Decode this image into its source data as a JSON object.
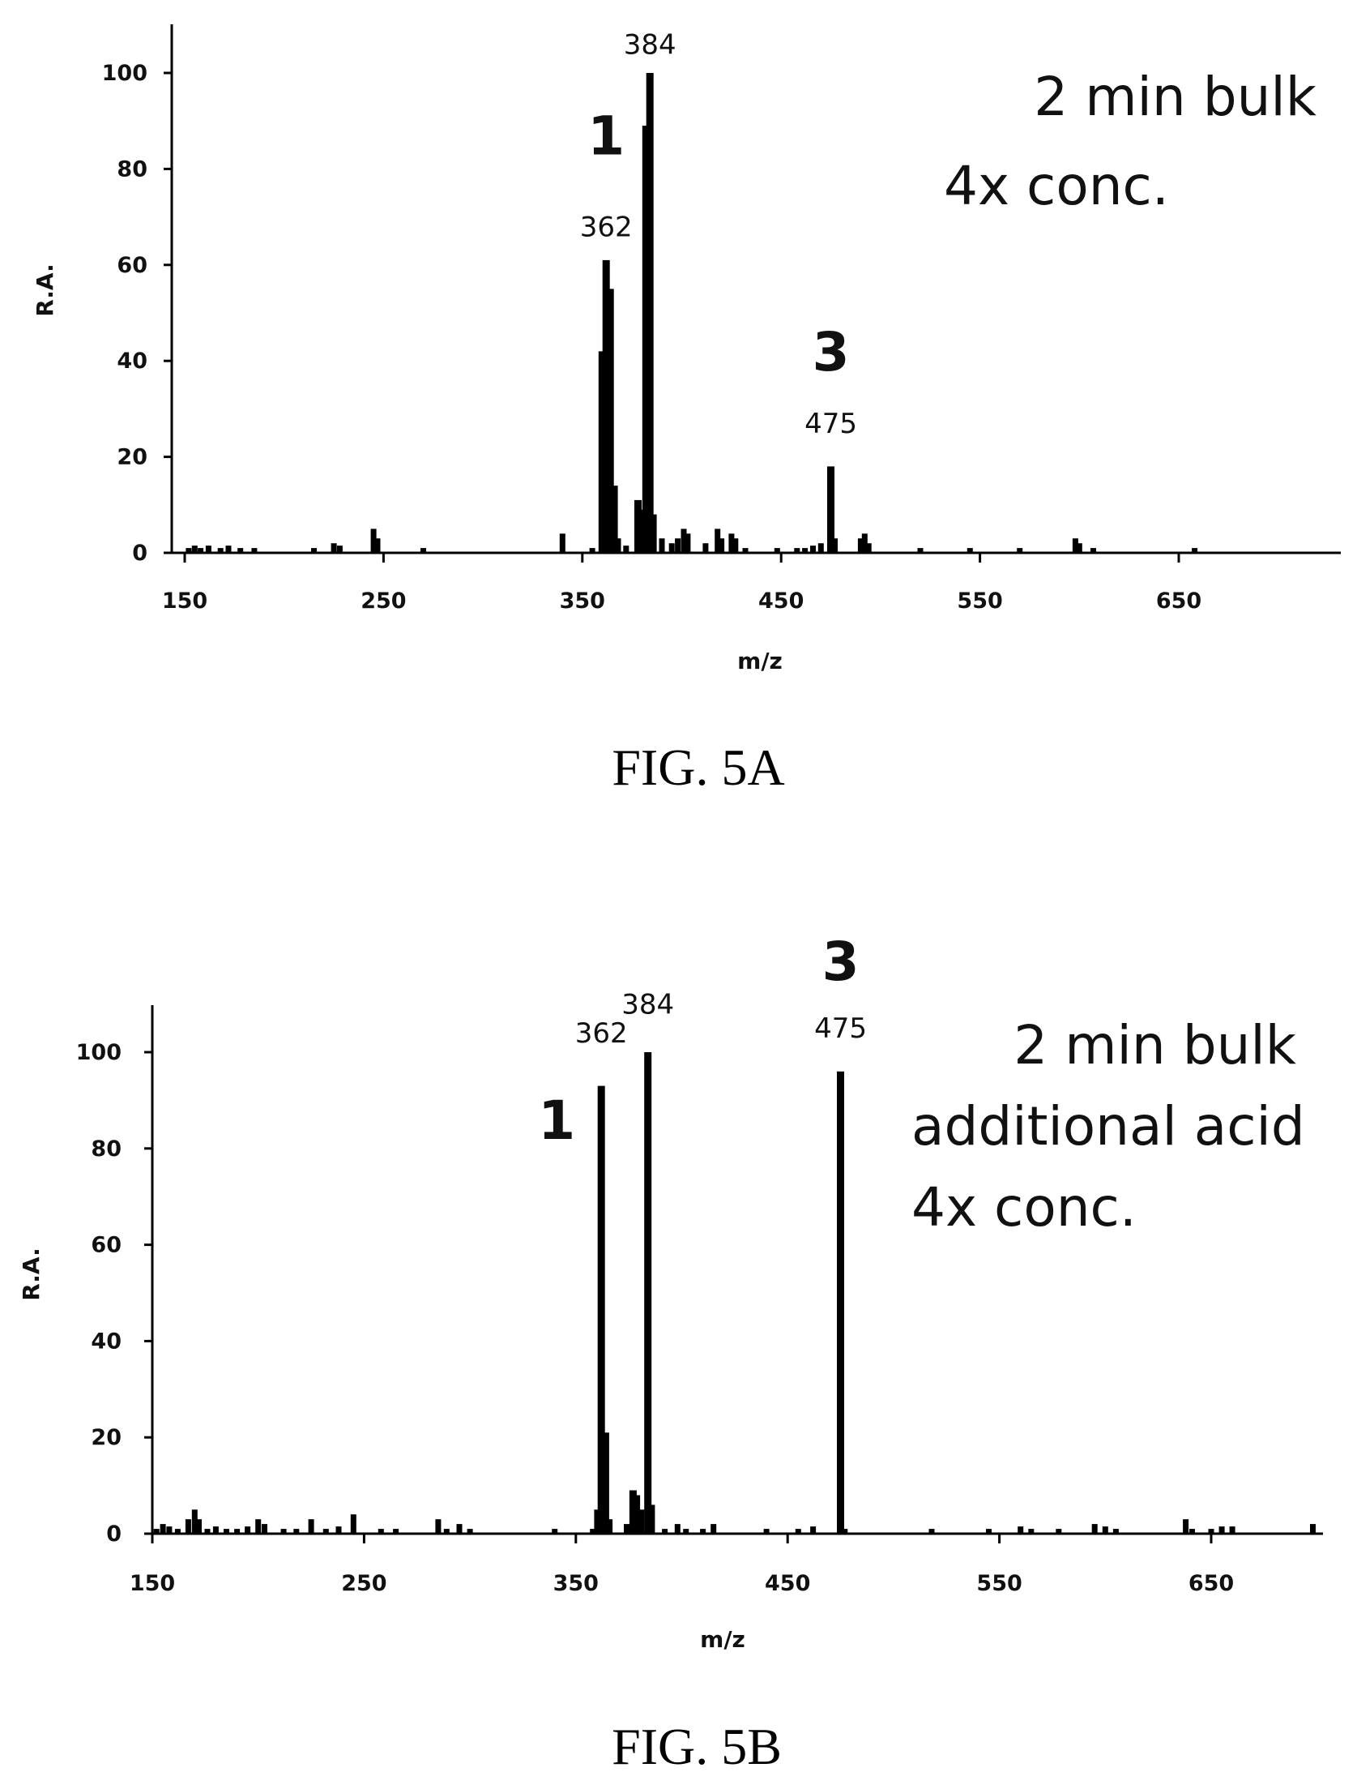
{
  "chart_data": [
    {
      "type": "bar",
      "caption": "FIG. 5A",
      "xlabel": "m/z",
      "ylabel": "R.A.",
      "xlim": [
        150,
        700
      ],
      "ylim": [
        0,
        110
      ],
      "xticks": [
        150,
        250,
        350,
        450,
        550,
        650
      ],
      "yticks": [
        0,
        20,
        40,
        60,
        80,
        100
      ],
      "annotation_lines": [
        "2 min bulk",
        "4x conc."
      ],
      "compound_labels": [
        {
          "text": "1",
          "x": 362,
          "y": 83
        },
        {
          "text": "3",
          "x": 475,
          "y": 38
        }
      ],
      "peak_labels": [
        {
          "text": "362",
          "x": 362,
          "y": 66
        },
        {
          "text": "384",
          "x": 384,
          "y": 104
        },
        {
          "text": "475",
          "x": 475,
          "y": 25
        }
      ],
      "peaks": [
        {
          "x": 152,
          "y": 1
        },
        {
          "x": 155,
          "y": 1.5
        },
        {
          "x": 158,
          "y": 1
        },
        {
          "x": 162,
          "y": 1.5
        },
        {
          "x": 168,
          "y": 1
        },
        {
          "x": 172,
          "y": 1.5
        },
        {
          "x": 178,
          "y": 1
        },
        {
          "x": 185,
          "y": 1
        },
        {
          "x": 215,
          "y": 1
        },
        {
          "x": 225,
          "y": 2
        },
        {
          "x": 228,
          "y": 1.5
        },
        {
          "x": 245,
          "y": 5
        },
        {
          "x": 247,
          "y": 3
        },
        {
          "x": 270,
          "y": 1
        },
        {
          "x": 340,
          "y": 4
        },
        {
          "x": 355,
          "y": 1
        },
        {
          "x": 360,
          "y": 42
        },
        {
          "x": 362,
          "y": 61
        },
        {
          "x": 364,
          "y": 55
        },
        {
          "x": 366,
          "y": 14
        },
        {
          "x": 368,
          "y": 3
        },
        {
          "x": 372,
          "y": 1.5
        },
        {
          "x": 378,
          "y": 11
        },
        {
          "x": 380,
          "y": 9
        },
        {
          "x": 382,
          "y": 89
        },
        {
          "x": 384,
          "y": 100
        },
        {
          "x": 386,
          "y": 8
        },
        {
          "x": 390,
          "y": 3
        },
        {
          "x": 395,
          "y": 2
        },
        {
          "x": 398,
          "y": 3
        },
        {
          "x": 401,
          "y": 5
        },
        {
          "x": 403,
          "y": 4
        },
        {
          "x": 412,
          "y": 2
        },
        {
          "x": 418,
          "y": 5
        },
        {
          "x": 420,
          "y": 3
        },
        {
          "x": 425,
          "y": 4
        },
        {
          "x": 427,
          "y": 3
        },
        {
          "x": 432,
          "y": 1
        },
        {
          "x": 448,
          "y": 1
        },
        {
          "x": 458,
          "y": 1
        },
        {
          "x": 462,
          "y": 1
        },
        {
          "x": 466,
          "y": 1.5
        },
        {
          "x": 470,
          "y": 2
        },
        {
          "x": 475,
          "y": 18
        },
        {
          "x": 477,
          "y": 3
        },
        {
          "x": 490,
          "y": 3
        },
        {
          "x": 492,
          "y": 4
        },
        {
          "x": 494,
          "y": 2
        },
        {
          "x": 520,
          "y": 1
        },
        {
          "x": 545,
          "y": 1
        },
        {
          "x": 570,
          "y": 1
        },
        {
          "x": 598,
          "y": 3
        },
        {
          "x": 600,
          "y": 2
        },
        {
          "x": 607,
          "y": 1
        },
        {
          "x": 658,
          "y": 1
        }
      ]
    },
    {
      "type": "bar",
      "caption": "FIG. 5B",
      "xlabel": "m/z",
      "ylabel": "R.A.",
      "xlim": [
        150,
        700
      ],
      "ylim": [
        0,
        110
      ],
      "xticks": [
        150,
        250,
        350,
        450,
        550,
        650
      ],
      "yticks": [
        0,
        20,
        40,
        60,
        80,
        100
      ],
      "annotation_lines": [
        "2 min bulk",
        "additional acid",
        "4x conc."
      ],
      "compound_labels": [
        {
          "text": "1",
          "x": 341,
          "y": 82
        },
        {
          "text": "3",
          "x": 475,
          "y": 115
        }
      ],
      "peak_labels": [
        {
          "text": "362",
          "x": 362,
          "y": 102
        },
        {
          "text": "384",
          "x": 384,
          "y": 108
        },
        {
          "text": "475",
          "x": 475,
          "y": 103
        }
      ],
      "peaks": [
        {
          "x": 152,
          "y": 1
        },
        {
          "x": 155,
          "y": 2
        },
        {
          "x": 158,
          "y": 1.5
        },
        {
          "x": 162,
          "y": 1
        },
        {
          "x": 167,
          "y": 3
        },
        {
          "x": 170,
          "y": 5
        },
        {
          "x": 172,
          "y": 3
        },
        {
          "x": 176,
          "y": 1
        },
        {
          "x": 180,
          "y": 1.5
        },
        {
          "x": 185,
          "y": 1
        },
        {
          "x": 190,
          "y": 1
        },
        {
          "x": 195,
          "y": 1.5
        },
        {
          "x": 200,
          "y": 3
        },
        {
          "x": 203,
          "y": 2
        },
        {
          "x": 212,
          "y": 1
        },
        {
          "x": 218,
          "y": 1
        },
        {
          "x": 225,
          "y": 3
        },
        {
          "x": 232,
          "y": 1
        },
        {
          "x": 238,
          "y": 1.5
        },
        {
          "x": 245,
          "y": 4
        },
        {
          "x": 258,
          "y": 1
        },
        {
          "x": 265,
          "y": 1
        },
        {
          "x": 285,
          "y": 3
        },
        {
          "x": 289,
          "y": 1
        },
        {
          "x": 295,
          "y": 2
        },
        {
          "x": 300,
          "y": 1
        },
        {
          "x": 340,
          "y": 1
        },
        {
          "x": 358,
          "y": 1
        },
        {
          "x": 360,
          "y": 5
        },
        {
          "x": 362,
          "y": 93
        },
        {
          "x": 364,
          "y": 21
        },
        {
          "x": 366,
          "y": 3
        },
        {
          "x": 374,
          "y": 2
        },
        {
          "x": 377,
          "y": 9
        },
        {
          "x": 379,
          "y": 8
        },
        {
          "x": 381,
          "y": 5
        },
        {
          "x": 384,
          "y": 100
        },
        {
          "x": 386,
          "y": 6
        },
        {
          "x": 392,
          "y": 1
        },
        {
          "x": 398,
          "y": 2
        },
        {
          "x": 402,
          "y": 1
        },
        {
          "x": 410,
          "y": 1
        },
        {
          "x": 415,
          "y": 2
        },
        {
          "x": 440,
          "y": 1
        },
        {
          "x": 455,
          "y": 1
        },
        {
          "x": 462,
          "y": 1.5
        },
        {
          "x": 475,
          "y": 96
        },
        {
          "x": 477,
          "y": 1
        },
        {
          "x": 518,
          "y": 1
        },
        {
          "x": 545,
          "y": 1
        },
        {
          "x": 560,
          "y": 1.5
        },
        {
          "x": 565,
          "y": 1
        },
        {
          "x": 578,
          "y": 1
        },
        {
          "x": 595,
          "y": 2
        },
        {
          "x": 600,
          "y": 1.5
        },
        {
          "x": 605,
          "y": 1
        },
        {
          "x": 638,
          "y": 3
        },
        {
          "x": 641,
          "y": 1
        },
        {
          "x": 650,
          "y": 1
        },
        {
          "x": 655,
          "y": 1.5
        },
        {
          "x": 660,
          "y": 1.5
        },
        {
          "x": 698,
          "y": 2
        }
      ]
    }
  ]
}
